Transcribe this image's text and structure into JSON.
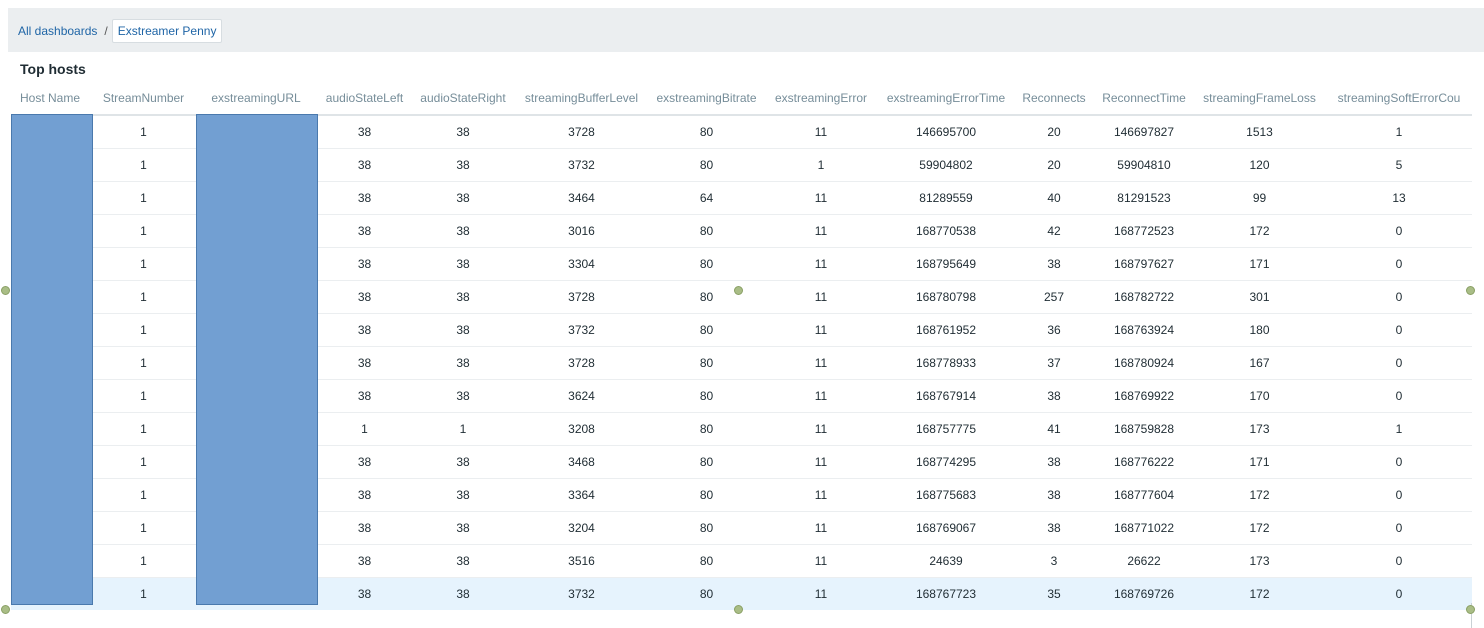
{
  "breadcrumb": {
    "root": "All dashboards",
    "separator": "/",
    "current": "Exstreamer Penny"
  },
  "widget": {
    "title": "Top hosts"
  },
  "table": {
    "columns": [
      "Host Name",
      "StreamNumber",
      "exstreamingURL",
      "audioStateLeft",
      "audioStateRight",
      "streamingBufferLevel",
      "exstreamingBitrate",
      "exstreamingError",
      "exstreamingErrorTime",
      "Reconnects",
      "ReconnectTime",
      "streamingFrameLoss",
      "streamingSoftErrorCou"
    ],
    "rows": [
      [
        "",
        "1",
        "",
        "38",
        "38",
        "3728",
        "80",
        "11",
        "146695700",
        "20",
        "146697827",
        "1513",
        "1"
      ],
      [
        "",
        "1",
        "",
        "38",
        "38",
        "3732",
        "80",
        "1",
        "59904802",
        "20",
        "59904810",
        "120",
        "5"
      ],
      [
        "",
        "1",
        "",
        "38",
        "38",
        "3464",
        "64",
        "11",
        "81289559",
        "40",
        "81291523",
        "99",
        "13"
      ],
      [
        "",
        "1",
        "",
        "38",
        "38",
        "3016",
        "80",
        "11",
        "168770538",
        "42",
        "168772523",
        "172",
        "0"
      ],
      [
        "",
        "1",
        "",
        "38",
        "38",
        "3304",
        "80",
        "11",
        "168795649",
        "38",
        "168797627",
        "171",
        "0"
      ],
      [
        "",
        "1",
        "",
        "38",
        "38",
        "3728",
        "80",
        "11",
        "168780798",
        "257",
        "168782722",
        "301",
        "0"
      ],
      [
        "",
        "1",
        "",
        "38",
        "38",
        "3732",
        "80",
        "11",
        "168761952",
        "36",
        "168763924",
        "180",
        "0"
      ],
      [
        "",
        "1",
        "",
        "38",
        "38",
        "3728",
        "80",
        "11",
        "168778933",
        "37",
        "168780924",
        "167",
        "0"
      ],
      [
        "",
        "1",
        "",
        "38",
        "38",
        "3624",
        "80",
        "11",
        "168767914",
        "38",
        "168769922",
        "170",
        "0"
      ],
      [
        "",
        "1",
        "",
        "1",
        "1",
        "3208",
        "80",
        "11",
        "168757775",
        "41",
        "168759828",
        "173",
        "1"
      ],
      [
        "",
        "1",
        "",
        "38",
        "38",
        "3468",
        "80",
        "11",
        "168774295",
        "38",
        "168776222",
        "171",
        "0"
      ],
      [
        "",
        "1",
        "",
        "38",
        "38",
        "3364",
        "80",
        "11",
        "168775683",
        "38",
        "168777604",
        "172",
        "0"
      ],
      [
        "",
        "1",
        "",
        "38",
        "38",
        "3204",
        "80",
        "11",
        "168769067",
        "38",
        "168771022",
        "172",
        "0"
      ],
      [
        "",
        "1",
        "",
        "38",
        "38",
        "3516",
        "80",
        "11",
        "24639",
        "3",
        "26622",
        "173",
        "0"
      ],
      [
        "",
        "1",
        "",
        "38",
        "38",
        "3732",
        "80",
        "11",
        "168767723",
        "35",
        "168769726",
        "172",
        "0"
      ]
    ],
    "selected_row": 14
  },
  "colors": {
    "link": "#1f65a6",
    "header_text": "#768d99",
    "redaction": "#729fd2",
    "selected_row": "#e6f3fd"
  }
}
